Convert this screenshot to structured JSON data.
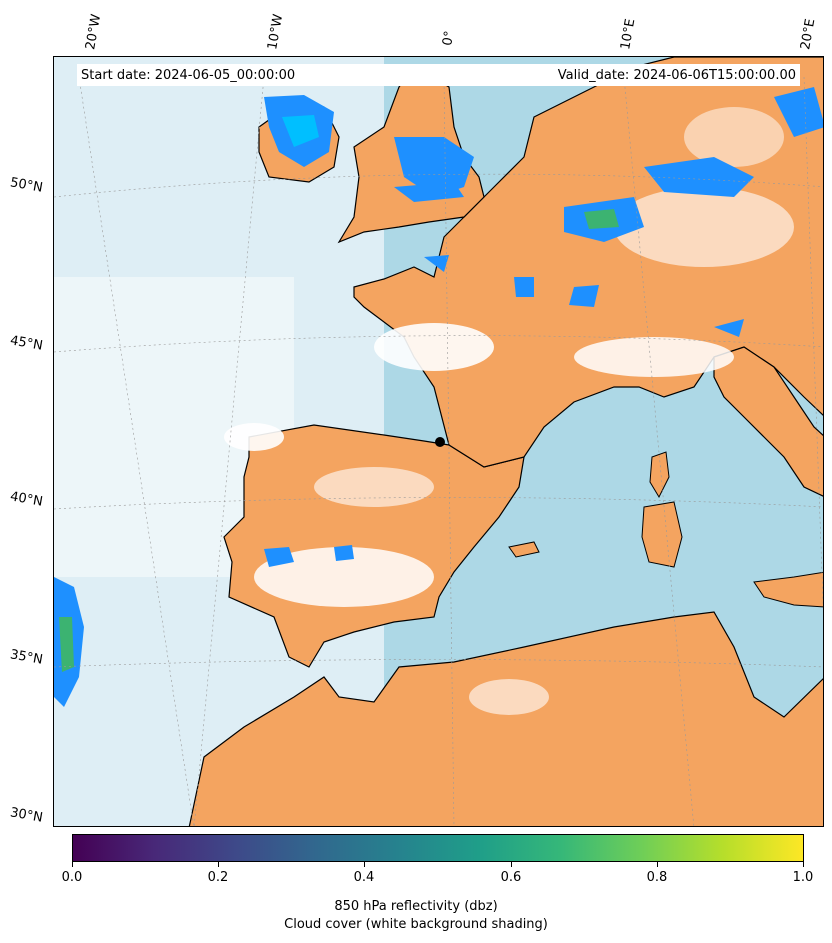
{
  "map": {
    "start_date": "Start date: 2024-06-05_00:00:00",
    "valid_date": "Valid_date: 2024-06-06T15:00:00.00",
    "lon_labels": [
      "20°W",
      "10°W",
      "0°",
      "10°E",
      "20°E"
    ],
    "lat_labels": [
      "50°N",
      "45°N",
      "40°N",
      "35°N",
      "30°N"
    ],
    "colors": {
      "land": "#f4a460",
      "sea": "#add8e6",
      "cloud": "#ffffff",
      "reflectivity": "#1e90ff",
      "coast": "#000000"
    }
  },
  "colorbar": {
    "ticks": [
      "0.0",
      "0.2",
      "0.4",
      "0.6",
      "0.8",
      "1.0"
    ],
    "label_line1": "850 hPa reflectivity (dbz)",
    "label_line2": "Cloud cover (white background shading)"
  }
}
